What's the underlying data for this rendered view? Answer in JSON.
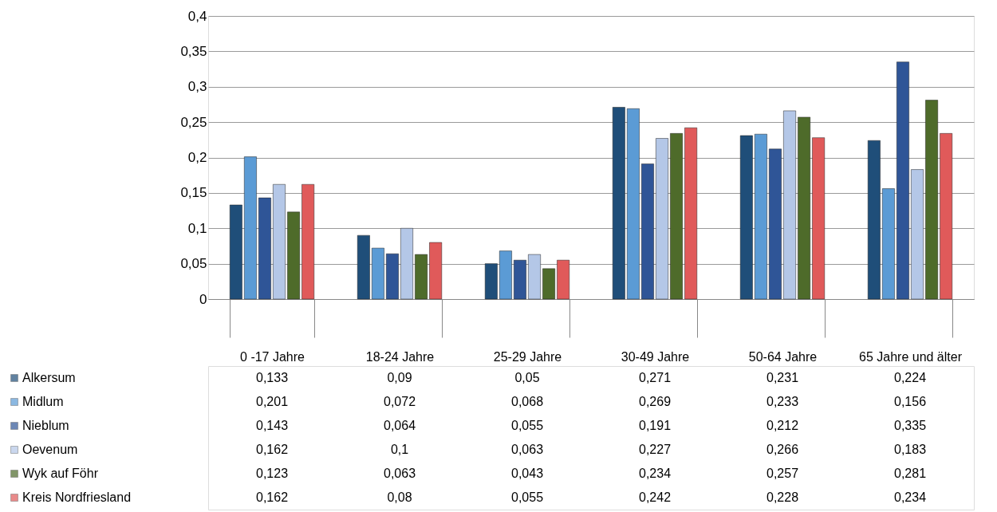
{
  "chart_data": {
    "type": "bar",
    "categories": [
      "0 -17 Jahre",
      "18-24 Jahre",
      "25-29 Jahre",
      "30-49 Jahre",
      "50-64 Jahre",
      "65 Jahre und älter"
    ],
    "series": [
      {
        "name": "Alkersum",
        "color": "#1f4e79",
        "values": [
          0.133,
          0.09,
          0.05,
          0.271,
          0.231,
          0.224
        ],
        "value_labels": [
          "0,133",
          "0,09",
          "0,05",
          "0,271",
          "0,231",
          "0,224"
        ]
      },
      {
        "name": "Midlum",
        "color": "#5b9bd5",
        "values": [
          0.201,
          0.072,
          0.068,
          0.269,
          0.233,
          0.156
        ],
        "value_labels": [
          "0,201",
          "0,072",
          "0,068",
          "0,269",
          "0,233",
          "0,156"
        ]
      },
      {
        "name": "Nieblum",
        "color": "#2f5597",
        "values": [
          0.143,
          0.064,
          0.055,
          0.191,
          0.212,
          0.335
        ],
        "value_labels": [
          "0,143",
          "0,064",
          "0,055",
          "0,191",
          "0,212",
          "0,335"
        ]
      },
      {
        "name": "Oevenum",
        "color": "#b4c7e7",
        "values": [
          0.162,
          0.1,
          0.063,
          0.227,
          0.266,
          0.183
        ],
        "value_labels": [
          "0,162",
          "0,1",
          "0,063",
          "0,227",
          "0,266",
          "0,183"
        ]
      },
      {
        "name": "Wyk auf Föhr",
        "color": "#4e6b2a",
        "values": [
          0.123,
          0.063,
          0.043,
          0.234,
          0.257,
          0.281
        ],
        "value_labels": [
          "0,123",
          "0,063",
          "0,043",
          "0,234",
          "0,257",
          "0,281"
        ]
      },
      {
        "name": "Kreis Nordfriesland",
        "color": "#e05a5a",
        "values": [
          0.162,
          0.08,
          0.055,
          0.242,
          0.228,
          0.234
        ],
        "value_labels": [
          "0,162",
          "0,08",
          "0,055",
          "0,242",
          "0,228",
          "0,234"
        ]
      }
    ],
    "ylim": [
      0,
      0.4
    ],
    "yticks": [
      0,
      {
        "value": 0.05,
        "label": "0,05"
      },
      {
        "value": 0.1,
        "label": "0,1"
      },
      {
        "value": 0.15,
        "label": "0,15"
      },
      {
        "value": 0.2,
        "label": "0,2"
      },
      {
        "value": 0.25,
        "label": "0,25"
      },
      {
        "value": 0.3,
        "label": "0,3"
      },
      {
        "value": 0.35,
        "label": "0,35"
      },
      {
        "value": 0.4,
        "label": "0,4"
      }
    ],
    "grid": "y",
    "legend": "bottom left"
  }
}
